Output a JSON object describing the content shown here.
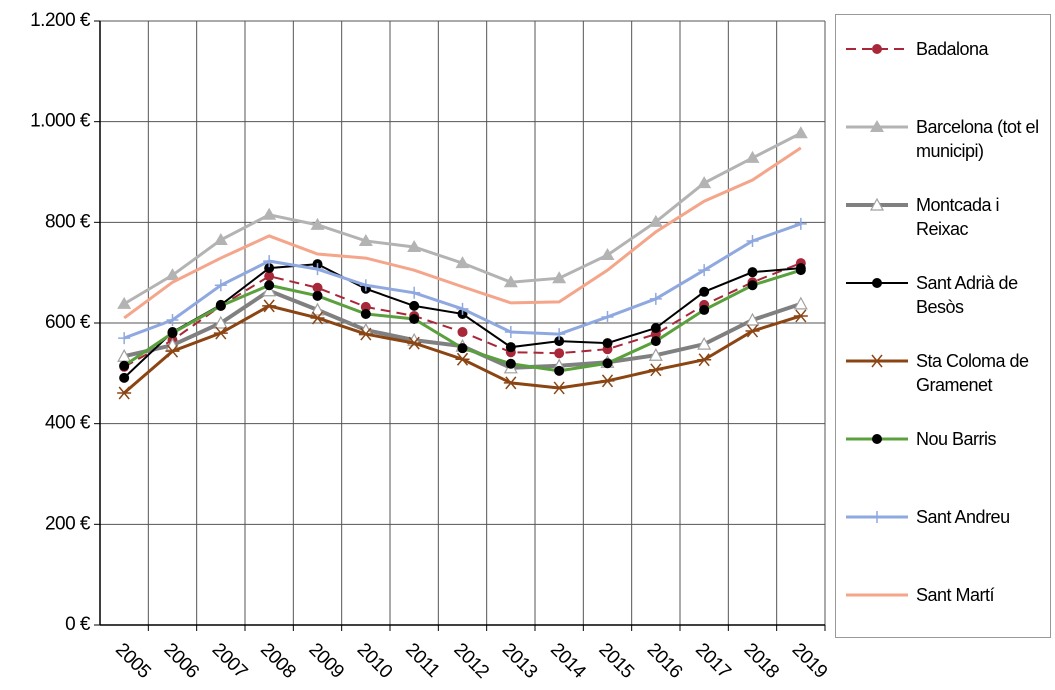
{
  "chart_data": {
    "type": "line",
    "categories": [
      "2005",
      "2006",
      "2007",
      "2008",
      "2009",
      "2010",
      "2011",
      "2012",
      "2013",
      "2014",
      "2015",
      "2016",
      "2017",
      "2018",
      "2019"
    ],
    "ylim": [
      0,
      1200
    ],
    "yticks": [
      {
        "value": 0,
        "label": "0 €"
      },
      {
        "value": 200,
        "label": "200 €"
      },
      {
        "value": 400,
        "label": "400 €"
      },
      {
        "value": 600,
        "label": "600 €"
      },
      {
        "value": 800,
        "label": "800 €"
      },
      {
        "value": 1000,
        "label": "1.000 €"
      },
      {
        "value": 1200,
        "label": "1.200 €"
      }
    ],
    "grid": true,
    "legend": "right",
    "series": [
      {
        "name": "Badalona",
        "color": "#a8283a",
        "marker": "circle",
        "marker_color": "#a8283a",
        "dashed": true,
        "width": 2,
        "values": [
          513,
          566,
          634,
          693,
          670,
          632,
          614,
          582,
          542,
          540,
          548,
          578,
          636,
          681,
          719
        ]
      },
      {
        "name": "Barcelona (tot el municipi)",
        "color": "#b3b3b3",
        "marker": "triangle",
        "marker_color": "#b3b3b3",
        "width": 3,
        "values": [
          638,
          695,
          765,
          815,
          795,
          763,
          751,
          719,
          681,
          689,
          735,
          801,
          878,
          928,
          977
        ]
      },
      {
        "name": "Montcada i Reixac",
        "color": "#808080",
        "marker": "open-triangle",
        "marker_color": "#a0a0a0",
        "width": 4,
        "values": [
          534,
          556,
          600,
          664,
          626,
          586,
          566,
          554,
          511,
          515,
          522,
          536,
          558,
          606,
          638
        ]
      },
      {
        "name": "Sant Adrià de Besòs",
        "color": "#000000",
        "marker": "circle",
        "marker_color": "#000000",
        "width": 2,
        "values": [
          491,
          582,
          636,
          709,
          717,
          668,
          634,
          618,
          552,
          564,
          560,
          590,
          662,
          701,
          709
        ]
      },
      {
        "name": "Sta Coloma de Gramenet",
        "color": "#8b4513",
        "marker": "star",
        "marker_color": "#8b4513",
        "width": 3,
        "values": [
          461,
          544,
          580,
          634,
          610,
          578,
          560,
          528,
          481,
          471,
          485,
          507,
          527,
          584,
          614
        ]
      },
      {
        "name": "Nou Barris",
        "color": "#5aa03c",
        "marker": "circle",
        "marker_color": "#000000",
        "width": 3,
        "values": [
          515,
          580,
          634,
          675,
          654,
          618,
          608,
          550,
          519,
          505,
          520,
          564,
          626,
          675,
          705
        ]
      },
      {
        "name": "Sant Andreu",
        "color": "#8fa9e0",
        "marker": "plus",
        "marker_color": "#8fa9e0",
        "width": 3,
        "values": [
          570,
          606,
          675,
          723,
          707,
          675,
          660,
          628,
          582,
          578,
          612,
          648,
          705,
          763,
          797
        ]
      },
      {
        "name": "Sant Martí",
        "color": "#f4a58a",
        "marker": "none",
        "marker_color": "#f4a58a",
        "width": 3,
        "values": [
          610,
          681,
          729,
          773,
          737,
          729,
          705,
          672,
          640,
          642,
          705,
          781,
          842,
          884,
          948
        ]
      }
    ]
  }
}
